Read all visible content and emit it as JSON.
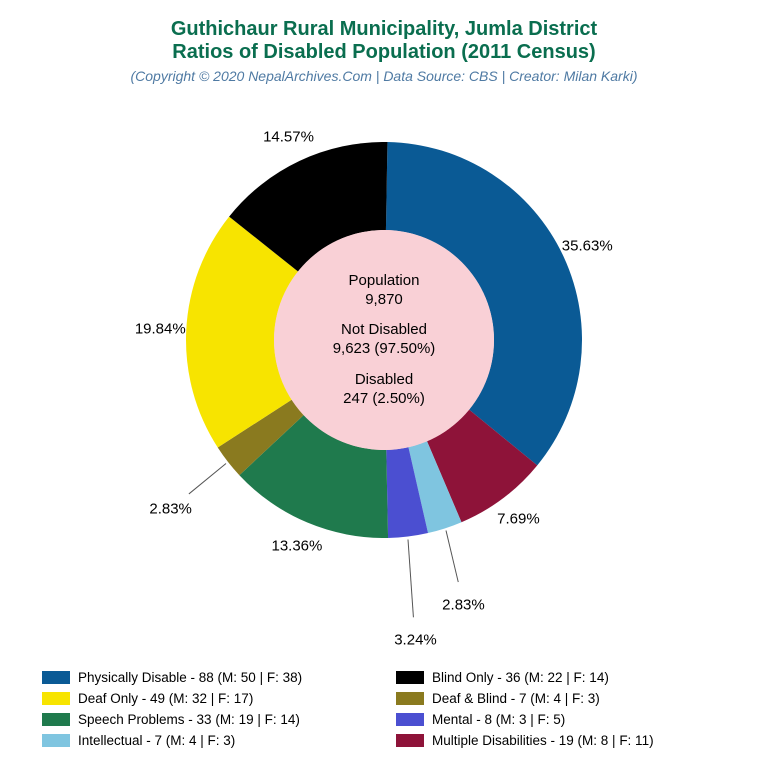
{
  "title": {
    "line1": "Guthichaur Rural Municipality, Jumla District",
    "line2": "Ratios of Disabled Population (2011 Census)",
    "color": "#0a6e4f",
    "fontsize": 20
  },
  "subtitle": {
    "text": "(Copyright © 2020 NepalArchives.Com | Data Source: CBS | Creator: Milan Karki)",
    "color": "#4f7aa3",
    "fontsize": 14
  },
  "chart": {
    "type": "pie",
    "background": "#ffffff",
    "outer_radius": 198,
    "inner_radius": 110,
    "inner_bg": "#f9d0d6",
    "start_angle_deg": -89,
    "label_fontsize": 15,
    "center": {
      "l1a": "Population",
      "l1b": "9,870",
      "l2a": "Not Disabled",
      "l2b": "9,623 (97.50%)",
      "l3a": "Disabled",
      "l3b": "247 (2.50%)"
    },
    "slices": [
      {
        "name": "Physically Disable",
        "pct": 35.63,
        "color": "#0a5a95",
        "legend": "Physically Disable - 88 (M: 50 | F: 38)",
        "label": "35.63%"
      },
      {
        "name": "Multiple Disabilities",
        "pct": 7.69,
        "color": "#8e1339",
        "legend": "Multiple Disabilities - 19 (M: 8 | F: 11)",
        "label": "7.69%"
      },
      {
        "name": "Intellectual",
        "pct": 2.83,
        "color": "#7fc5e0",
        "legend": "Intellectual - 7 (M: 4 | F: 3)",
        "label": "2.83%"
      },
      {
        "name": "Mental",
        "pct": 3.24,
        "color": "#4b4fd1",
        "legend": "Mental - 8 (M: 3 | F: 5)",
        "label": "3.24%"
      },
      {
        "name": "Speech Problems",
        "pct": 13.36,
        "color": "#1f7a4d",
        "legend": "Speech Problems - 33 (M: 19 | F: 14)",
        "label": "13.36%"
      },
      {
        "name": "Deaf & Blind",
        "pct": 2.83,
        "color": "#8a7a1f",
        "legend": "Deaf & Blind - 7 (M: 4 | F: 3)",
        "label": "2.83%"
      },
      {
        "name": "Deaf Only",
        "pct": 19.84,
        "color": "#f7e400",
        "legend": "Deaf Only - 49 (M: 32 | F: 17)",
        "label": "19.84%"
      },
      {
        "name": "Blind Only",
        "pct": 14.57,
        "color": "#000000",
        "legend": "Blind Only - 36 (M: 22 | F: 14)",
        "label": "14.57%"
      }
    ],
    "legend_order": [
      0,
      7,
      6,
      5,
      4,
      3,
      2,
      1
    ]
  }
}
